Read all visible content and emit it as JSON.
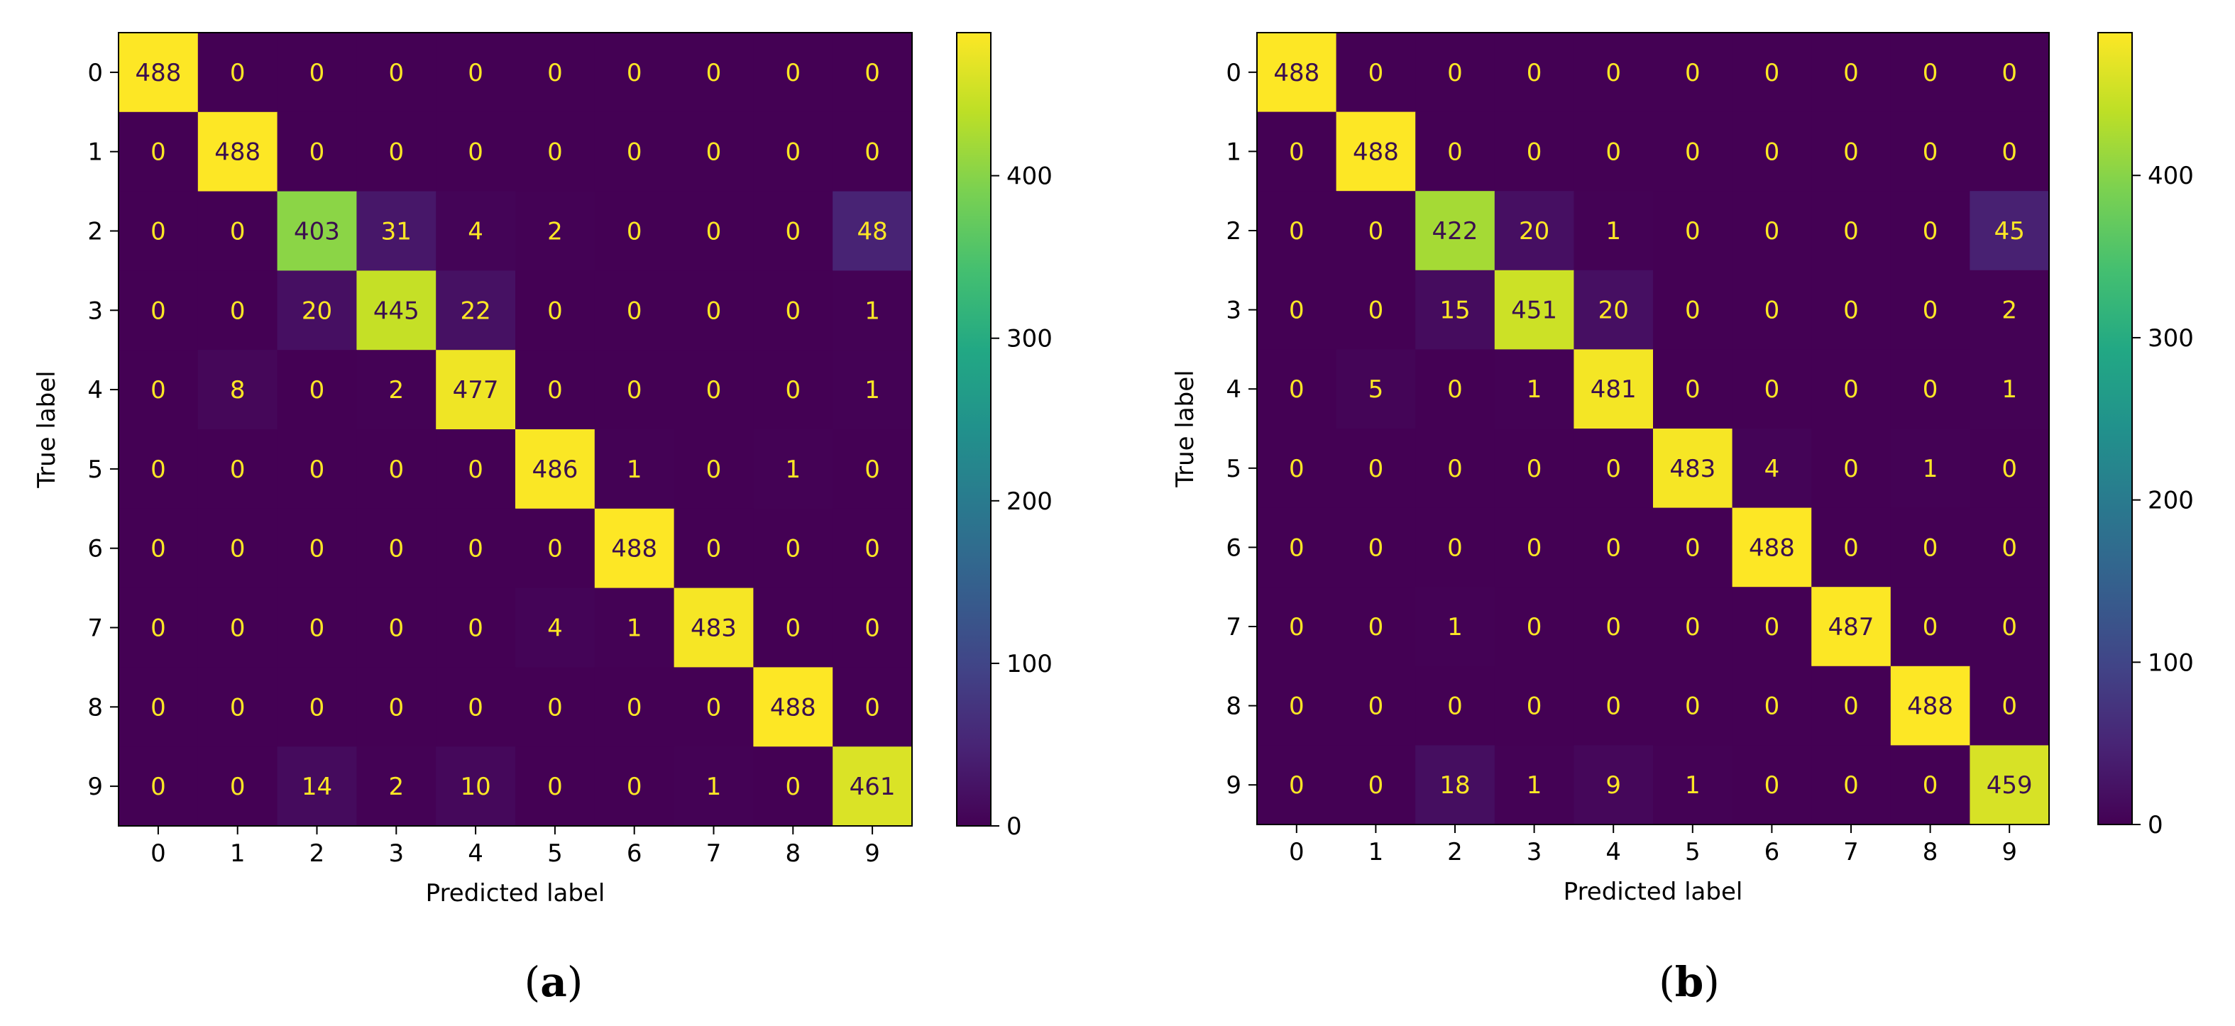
{
  "chart_data": [
    {
      "type": "heatmap",
      "title": "",
      "panel_label": "(a)",
      "panel_letter": "a",
      "xlabel": "Predicted label",
      "ylabel": "True label",
      "x_ticks": [
        "0",
        "1",
        "2",
        "3",
        "4",
        "5",
        "6",
        "7",
        "8",
        "9"
      ],
      "y_ticks": [
        "0",
        "1",
        "2",
        "3",
        "4",
        "5",
        "6",
        "7",
        "8",
        "9"
      ],
      "matrix": [
        [
          488,
          0,
          0,
          0,
          0,
          0,
          0,
          0,
          0,
          0
        ],
        [
          0,
          488,
          0,
          0,
          0,
          0,
          0,
          0,
          0,
          0
        ],
        [
          0,
          0,
          403,
          31,
          4,
          2,
          0,
          0,
          0,
          48
        ],
        [
          0,
          0,
          20,
          445,
          22,
          0,
          0,
          0,
          0,
          1
        ],
        [
          0,
          8,
          0,
          2,
          477,
          0,
          0,
          0,
          0,
          1
        ],
        [
          0,
          0,
          0,
          0,
          0,
          486,
          1,
          0,
          1,
          0
        ],
        [
          0,
          0,
          0,
          0,
          0,
          0,
          488,
          0,
          0,
          0
        ],
        [
          0,
          0,
          0,
          0,
          0,
          4,
          1,
          483,
          0,
          0
        ],
        [
          0,
          0,
          0,
          0,
          0,
          0,
          0,
          0,
          488,
          0
        ],
        [
          0,
          0,
          14,
          2,
          10,
          0,
          0,
          1,
          0,
          461
        ]
      ],
      "colorbar": {
        "min": 0,
        "max": 488,
        "ticks": [
          0,
          100,
          200,
          300,
          400
        ],
        "tick_labels": [
          "0",
          "100",
          "200",
          "300",
          "400"
        ]
      },
      "colormap": "viridis"
    },
    {
      "type": "heatmap",
      "title": "",
      "panel_label": "(b)",
      "panel_letter": "b",
      "xlabel": "Predicted label",
      "ylabel": "True label",
      "x_ticks": [
        "0",
        "1",
        "2",
        "3",
        "4",
        "5",
        "6",
        "7",
        "8",
        "9"
      ],
      "y_ticks": [
        "0",
        "1",
        "2",
        "3",
        "4",
        "5",
        "6",
        "7",
        "8",
        "9"
      ],
      "matrix": [
        [
          488,
          0,
          0,
          0,
          0,
          0,
          0,
          0,
          0,
          0
        ],
        [
          0,
          488,
          0,
          0,
          0,
          0,
          0,
          0,
          0,
          0
        ],
        [
          0,
          0,
          422,
          20,
          1,
          0,
          0,
          0,
          0,
          45
        ],
        [
          0,
          0,
          15,
          451,
          20,
          0,
          0,
          0,
          0,
          2
        ],
        [
          0,
          5,
          0,
          1,
          481,
          0,
          0,
          0,
          0,
          1
        ],
        [
          0,
          0,
          0,
          0,
          0,
          483,
          4,
          0,
          1,
          0
        ],
        [
          0,
          0,
          0,
          0,
          0,
          0,
          488,
          0,
          0,
          0
        ],
        [
          0,
          0,
          1,
          0,
          0,
          0,
          0,
          487,
          0,
          0
        ],
        [
          0,
          0,
          0,
          0,
          0,
          0,
          0,
          0,
          488,
          0
        ],
        [
          0,
          0,
          18,
          1,
          9,
          1,
          0,
          0,
          0,
          459
        ]
      ],
      "colorbar": {
        "min": 0,
        "max": 488,
        "ticks": [
          0,
          100,
          200,
          300,
          400
        ],
        "tick_labels": [
          "0",
          "100",
          "200",
          "300",
          "400"
        ]
      },
      "colormap": "viridis"
    }
  ]
}
